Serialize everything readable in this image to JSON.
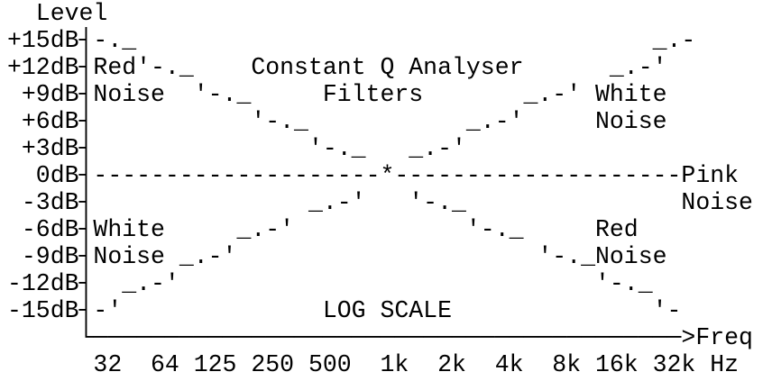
{
  "lines": [
    "  Level",
    "+15dB┤-._                                    _.-",
    "+12dB┤Red'-._    Constant Q Analyser      _.-'",
    " +9dB┤Noise  '-._     Filters       _.-' White",
    " +6dB┤           '-._           _.-'     Noise",
    " +3dB┤               '-._   _.-'",
    "  0dB┤--------------------*--------------------Pink",
    " -3dB┤               _.-'   '-._               Noise",
    " -6dB┤White     _.-'            '-._     Red",
    " -9dB┤Noise _.-'                     '-._Noise",
    "-12dB┤  _.-'                             '-._",
    "-15dB┤-'              LOG SCALE              '-",
    "     └─────────────────────────────────────────>Freq",
    "      32  64 125 250 500  1k  2k  4k  8k 16k 32k Hz"
  ]
}
